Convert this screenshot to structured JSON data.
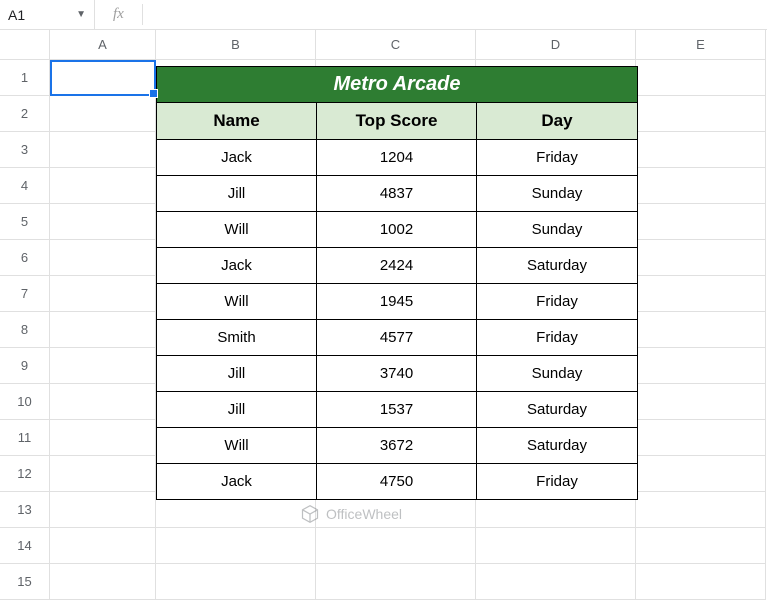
{
  "formula_bar": {
    "cell_ref": "A1",
    "fx_label": "fx",
    "formula_value": ""
  },
  "columns": [
    "A",
    "B",
    "C",
    "D",
    "E"
  ],
  "rows": [
    "1",
    "2",
    "3",
    "4",
    "5",
    "6",
    "7",
    "8",
    "9",
    "10",
    "11",
    "12",
    "13",
    "14",
    "15"
  ],
  "table": {
    "title": "Metro Arcade",
    "title_bg": "#2e7d32",
    "header_bg": "#d9ead3",
    "headers": [
      "Name",
      "Top Score",
      "Day"
    ],
    "rows": [
      [
        "Jack",
        "1204",
        "Friday"
      ],
      [
        "Jill",
        "4837",
        "Sunday"
      ],
      [
        "Will",
        "1002",
        "Sunday"
      ],
      [
        "Jack",
        "2424",
        "Saturday"
      ],
      [
        "Will",
        "1945",
        "Friday"
      ],
      [
        "Smith",
        "4577",
        "Friday"
      ],
      [
        "Jill",
        "3740",
        "Sunday"
      ],
      [
        "Jill",
        "1537",
        "Saturday"
      ],
      [
        "Will",
        "3672",
        "Saturday"
      ],
      [
        "Jack",
        "4750",
        "Friday"
      ]
    ]
  },
  "watermark": {
    "text": "OfficeWheel"
  },
  "colors": {
    "active_border": "#1a73e8",
    "grid_line": "#e0e0e0",
    "header_text": "#5f6368"
  }
}
